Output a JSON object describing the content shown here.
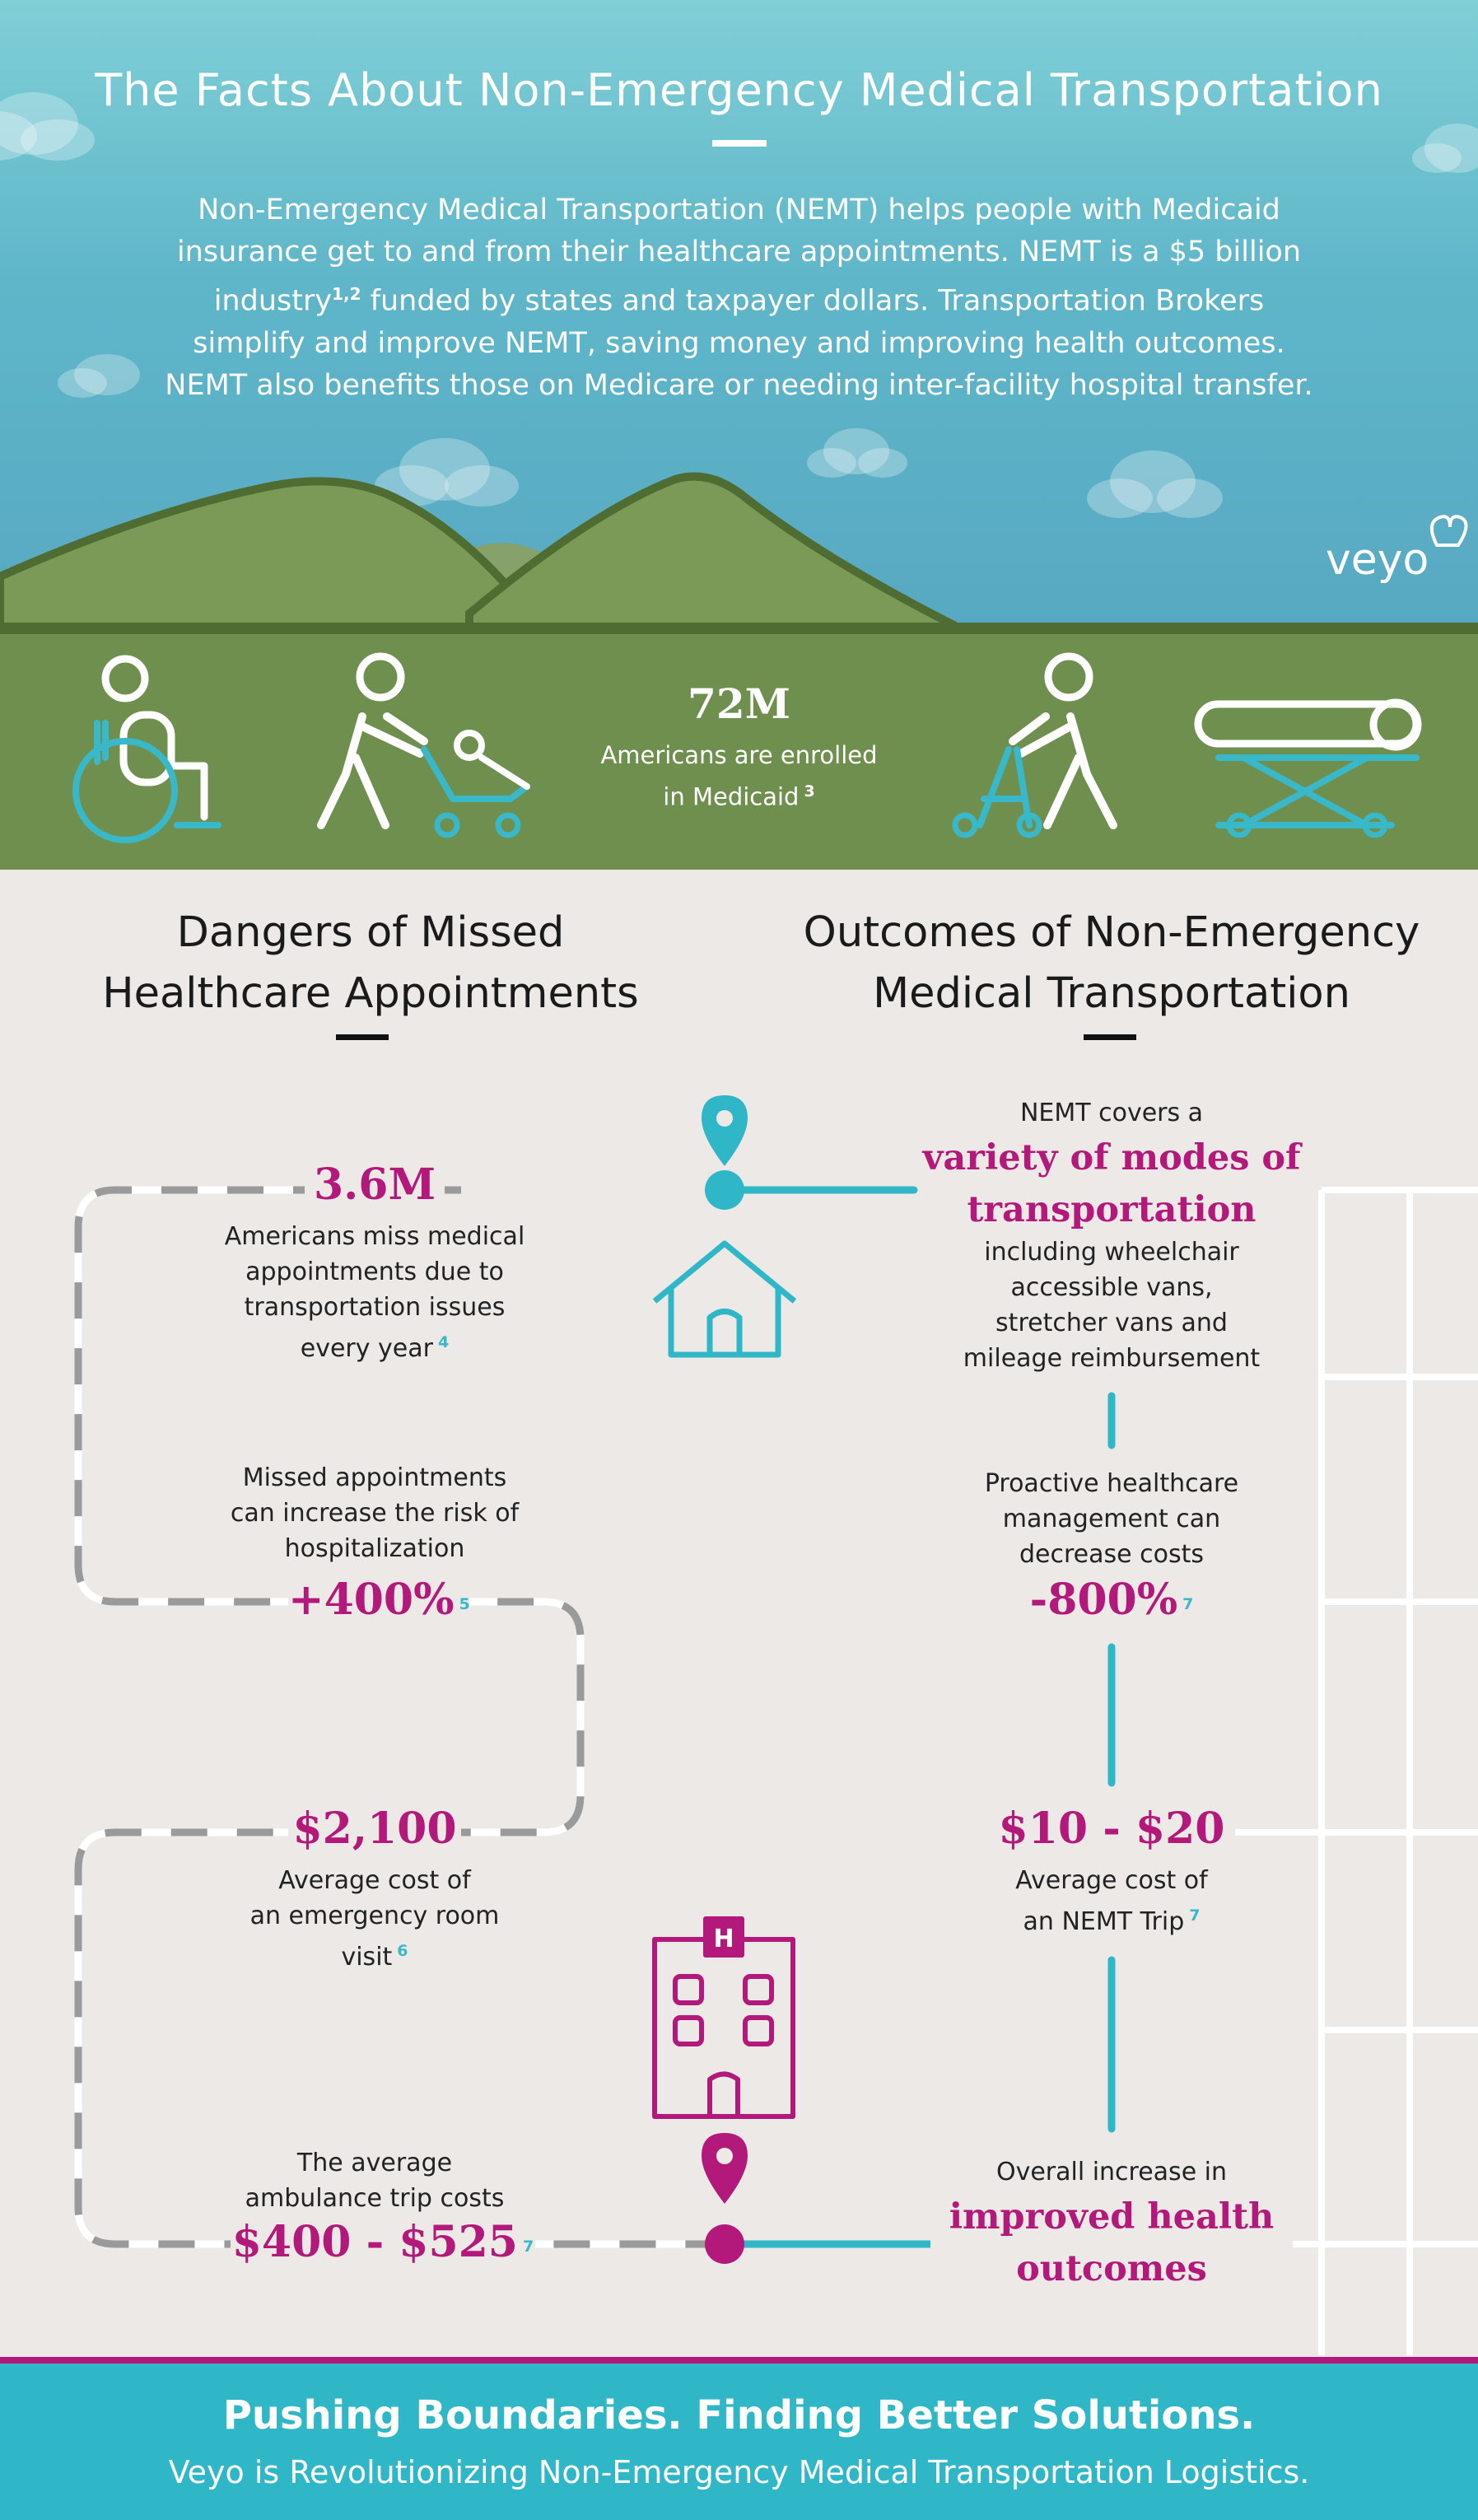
{
  "header": {
    "title": "The Facts About Non-Emergency Medical Transportation",
    "intro_lines": [
      "Non-Emergency Medical Transportation (NEMT) helps people with Medicaid",
      "insurance get to and from their healthcare appointments. NEMT is a $5 billion",
      "funded by states and taxpayer dollars. Transportation Brokers",
      "simplify and improve NEMT, saving money and improving health outcomes.",
      "NEMT also benefits those on Medicare or needing inter-facility hospital transfer."
    ],
    "intro_industry_word": "industry",
    "intro_industry_ref": "1,2",
    "brand": "veyo"
  },
  "band": {
    "stat_value": "72M",
    "stat_line1": "Americans are enrolled",
    "stat_line2": "in Medicaid",
    "stat_ref": "3",
    "icons": [
      "wheelchair-icon",
      "stroller-icon",
      "walker-icon",
      "stretcher-icon"
    ]
  },
  "left": {
    "heading_line1": "Dangers of Missed",
    "heading_line2": "Healthcare Appointments",
    "item1": {
      "value": "3.6M",
      "lines": [
        "Americans miss medical",
        "appointments due to",
        "transportation issues",
        "every year"
      ],
      "ref": "4"
    },
    "item2": {
      "lines": [
        "Missed appointments",
        "can increase the risk of",
        "hospitalization"
      ],
      "value": "+400%",
      "ref": "5"
    },
    "item3": {
      "value": "$2,100",
      "lines": [
        "Average cost of",
        "an emergency room",
        "visit"
      ],
      "ref": "6"
    },
    "item4": {
      "lines": [
        "The average",
        "ambulance trip costs"
      ],
      "value": "$400 - $525",
      "ref": "7"
    }
  },
  "right": {
    "heading_line1": "Outcomes of Non-Emergency",
    "heading_line2": "Medical Transportation",
    "item1": {
      "intro": "NEMT covers a",
      "highlight_line1": "variety of modes of",
      "highlight_line2": "transportation",
      "lines": [
        "including wheelchair",
        "accessible vans,",
        "stretcher vans and",
        "mileage reimbursement"
      ]
    },
    "item2": {
      "lines": [
        "Proactive healthcare",
        "management can",
        "decrease costs"
      ],
      "value": "-800%",
      "ref": "7"
    },
    "item3": {
      "value": "$10 - $20",
      "lines": [
        "Average cost of",
        "an NEMT Trip"
      ],
      "ref": "7"
    },
    "item4": {
      "intro": "Overall increase in",
      "highlight_line1": "improved health",
      "highlight_line2": "outcomes"
    }
  },
  "footer": {
    "title": "Pushing Boundaries. Finding Better Solutions.",
    "subtitle": "Veyo is Revolutionizing Non-Emergency Medical Transportation Logistics."
  },
  "colors": {
    "magenta": "#b3197a",
    "teal": "#2fb7c8",
    "green": "#6e8f4e",
    "sky": "#6cc3cf"
  }
}
